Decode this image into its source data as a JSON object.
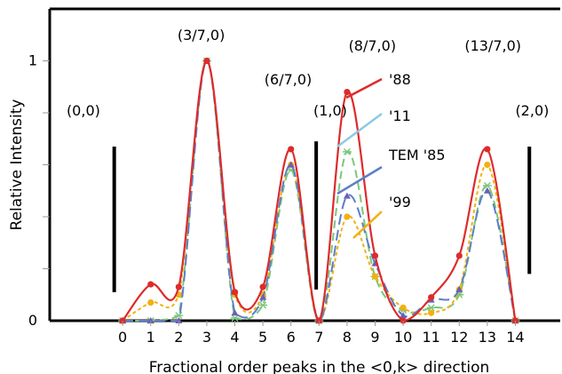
{
  "chart_data": {
    "type": "line",
    "title": "",
    "xlabel": "Fractional order peaks in the <0,k> direction",
    "ylabel": "Relative Intensity",
    "x": [
      0,
      1,
      2,
      3,
      4,
      5,
      6,
      7,
      8,
      9,
      10,
      11,
      12,
      13,
      14
    ],
    "xticks": [
      "0",
      "1",
      "2",
      "3",
      "4",
      "5",
      "6",
      "7",
      "8",
      "9",
      "10",
      "11",
      "12",
      "13",
      "14"
    ],
    "yticks": [
      {
        "value": 0,
        "label": "0"
      },
      {
        "value": 1,
        "label": "1"
      }
    ],
    "xlim": [
      -2.6,
      15.6
    ],
    "ylim": [
      0,
      1.2
    ],
    "grid": false,
    "series": [
      {
        "name": "'88",
        "color": "#dd2b2b",
        "dash": "solid",
        "marker": "circle",
        "values": [
          0,
          0.14,
          0.13,
          1.0,
          0.11,
          0.13,
          0.66,
          0,
          0.88,
          0.25,
          0,
          0.09,
          0.25,
          0.66,
          0
        ]
      },
      {
        "name": "'11",
        "color": "#7cc67c",
        "dash": "dash",
        "marker": "asterisk",
        "values": [
          0,
          0,
          0.02,
          1.0,
          0.01,
          0.06,
          0.58,
          0,
          0.65,
          0.17,
          0.04,
          0.05,
          0.1,
          0.52,
          0
        ]
      },
      {
        "name": "TEM '85",
        "color": "#5b7fc7",
        "dash": "longdash",
        "marker": "triangle",
        "values": [
          0,
          0,
          0,
          1.0,
          0.03,
          0.09,
          0.6,
          0,
          0.48,
          0.22,
          0.02,
          0.08,
          0.12,
          0.5,
          0
        ]
      },
      {
        "name": "'99",
        "color": "#f2b10f",
        "dash": "dot",
        "marker": "circle",
        "values": [
          0,
          0.07,
          0.1,
          1.0,
          0.1,
          0.1,
          0.6,
          0,
          0.4,
          0.17,
          0.05,
          0.03,
          0.12,
          0.6,
          0
        ]
      }
    ],
    "annotations": [
      {
        "text": "(0,0)",
        "x": -1.4,
        "y": 0.79
      },
      {
        "text": "(3/7,0)",
        "x": 2.8,
        "y": 1.08
      },
      {
        "text": "(6/7,0)",
        "x": 5.9,
        "y": 0.91
      },
      {
        "text": "(1,0)",
        "x": 7.4,
        "y": 0.79
      },
      {
        "text": "(8/7,0)",
        "x": 8.9,
        "y": 1.04
      },
      {
        "text": "(13/7,0)",
        "x": 13.2,
        "y": 1.04
      },
      {
        "text": "(2,0)",
        "x": 14.6,
        "y": 0.79
      }
    ],
    "markers_vertical": [
      {
        "x": -0.3,
        "y_top": 0.67,
        "y_bottom": 0.11
      },
      {
        "x": 6.9,
        "y_top": 0.69,
        "y_bottom": 0.12
      },
      {
        "x": 14.5,
        "y_top": 0.67,
        "y_bottom": 0.18
      }
    ],
    "legend_placement": "inline-labels-with-arrows"
  }
}
